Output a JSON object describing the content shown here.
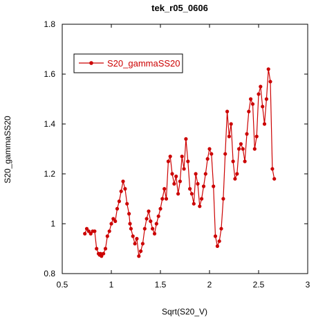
{
  "chart_data": {
    "type": "line",
    "title": "tek_r05_0606",
    "xlabel": "Sqrt(S20_V)",
    "ylabel": "S20_gammaSS20",
    "xlim": [
      0.5,
      3
    ],
    "ylim": [
      0.8,
      1.8
    ],
    "xticks": [
      0.5,
      1,
      1.5,
      2,
      2.5,
      3
    ],
    "xtick_labels": [
      "0.5",
      "1",
      "1.5",
      "2",
      "2.5",
      "3"
    ],
    "yticks": [
      0.8,
      1,
      1.2,
      1.4,
      1.6,
      1.8
    ],
    "ytick_labels": [
      "0.8",
      "1",
      "1.2",
      "1.4",
      "1.6",
      "1.8"
    ],
    "grid": false,
    "legend_position": "top-left",
    "series": [
      {
        "name": "S20_gammaSS20",
        "color": "#cc0000",
        "marker": "circle",
        "x": [
          0.73,
          0.75,
          0.77,
          0.79,
          0.81,
          0.83,
          0.85,
          0.87,
          0.88,
          0.89,
          0.9,
          0.92,
          0.94,
          0.96,
          0.98,
          1.0,
          1.02,
          1.04,
          1.06,
          1.08,
          1.1,
          1.12,
          1.14,
          1.16,
          1.18,
          1.19,
          1.2,
          1.22,
          1.24,
          1.26,
          1.28,
          1.3,
          1.32,
          1.34,
          1.36,
          1.38,
          1.4,
          1.42,
          1.44,
          1.46,
          1.48,
          1.5,
          1.52,
          1.54,
          1.56,
          1.58,
          1.6,
          1.62,
          1.64,
          1.66,
          1.68,
          1.7,
          1.72,
          1.74,
          1.76,
          1.78,
          1.8,
          1.82,
          1.84,
          1.86,
          1.88,
          1.9,
          1.92,
          1.94,
          1.96,
          1.98,
          2.0,
          2.02,
          2.04,
          2.06,
          2.08,
          2.1,
          2.12,
          2.14,
          2.16,
          2.18,
          2.2,
          2.22,
          2.24,
          2.26,
          2.28,
          2.3,
          2.32,
          2.34,
          2.36,
          2.38,
          2.4,
          2.42,
          2.44,
          2.46,
          2.48,
          2.5,
          2.52,
          2.54,
          2.56,
          2.58,
          2.6,
          2.62,
          2.64,
          2.66
        ],
        "y": [
          0.96,
          0.98,
          0.97,
          0.96,
          0.97,
          0.97,
          0.9,
          0.88,
          0.875,
          0.88,
          0.87,
          0.88,
          0.9,
          0.95,
          0.97,
          1.0,
          1.02,
          1.01,
          1.06,
          1.09,
          1.13,
          1.17,
          1.14,
          1.08,
          1.04,
          1.0,
          0.98,
          0.95,
          0.92,
          0.94,
          0.87,
          0.89,
          0.92,
          0.98,
          1.02,
          1.05,
          1.01,
          0.98,
          0.96,
          1.0,
          1.03,
          1.06,
          1.1,
          1.14,
          1.1,
          1.25,
          1.27,
          1.2,
          1.16,
          1.19,
          1.12,
          1.17,
          1.27,
          1.22,
          1.34,
          1.25,
          1.14,
          1.12,
          1.08,
          1.2,
          1.16,
          1.07,
          1.1,
          1.15,
          1.2,
          1.26,
          1.3,
          1.28,
          1.15,
          0.95,
          0.91,
          0.93,
          0.98,
          1.1,
          1.28,
          1.45,
          1.35,
          1.4,
          1.25,
          1.18,
          1.2,
          1.3,
          1.32,
          1.3,
          1.25,
          1.36,
          1.45,
          1.5,
          1.48,
          1.3,
          1.35,
          1.52,
          1.55,
          1.47,
          1.4,
          1.5,
          1.62,
          1.57,
          1.22,
          1.18
        ]
      }
    ]
  }
}
